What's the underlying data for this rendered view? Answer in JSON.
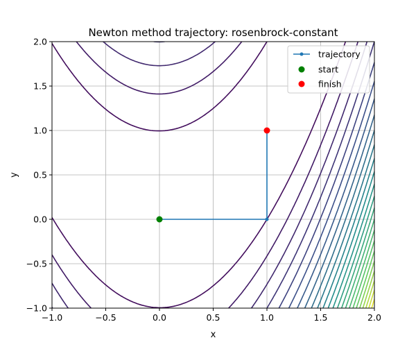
{
  "chart_data": {
    "type": "line",
    "title": "Newton method trajectory: rosenbrock-constant",
    "xlabel": "x",
    "ylabel": "y",
    "xlim": [
      -1.0,
      2.0
    ],
    "ylim": [
      -1.0,
      2.0
    ],
    "xticks": [
      -1.0,
      -0.5,
      0.0,
      0.5,
      1.0,
      1.5,
      2.0
    ],
    "yticks": [
      -1.0,
      -0.5,
      0.0,
      0.5,
      1.0,
      1.5,
      2.0
    ],
    "xtick_labels": [
      "−1.0",
      "−0.5",
      "0.0",
      "0.5",
      "1.0",
      "1.5",
      "2.0"
    ],
    "ytick_labels": [
      "−1.0",
      "−0.5",
      "0.0",
      "0.5",
      "1.0",
      "1.5",
      "2.0"
    ],
    "grid": true,
    "legend_position": "top-right",
    "series": [
      {
        "name": "trajectory",
        "color": "#1f77b4",
        "x": [
          0.0,
          1.0,
          1.0
        ],
        "y": [
          0.0,
          0.0,
          1.0
        ]
      }
    ],
    "markers": [
      {
        "name": "start",
        "color": "#008000",
        "x": 0.0,
        "y": 0.0
      },
      {
        "name": "finish",
        "color": "#ff0000",
        "x": 1.0,
        "y": 1.0
      }
    ],
    "contours": {
      "function": "rosenbrock",
      "colormap": "viridis"
    }
  }
}
